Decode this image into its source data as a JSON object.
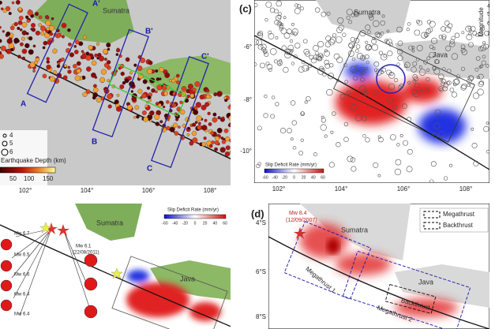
{
  "panel_a": {
    "place": "Sumatra",
    "profiles": [
      "A'",
      "B'",
      "C'",
      "A",
      "B",
      "C"
    ],
    "magnitude_legend": [
      "4",
      "5",
      "6"
    ],
    "colorbar_title": "Earthquake Depth (km)",
    "colorbar_ticks": [
      "50",
      "100",
      "150"
    ],
    "lon_ticks": [
      "102°",
      "104°",
      "106°",
      "108°"
    ]
  },
  "panel_c": {
    "label": "(c)",
    "places": [
      "Sumatra",
      "Java"
    ],
    "magnitude_title": "Magnitude",
    "magnitude_legend": [
      "4",
      "5",
      "6",
      "7"
    ],
    "colorbar_title": "Slip Deficit Rate (mm/yr)",
    "colorbar_ticks": [
      "-60",
      "-40",
      "-20",
      "0",
      "20",
      "40",
      "60"
    ],
    "lat_ticks": [
      "-6°",
      "-8°",
      "-10°"
    ],
    "lon_ticks": [
      "102°",
      "104°",
      "106°",
      "108°"
    ]
  },
  "panel_b": {
    "places": [
      "Sumatra",
      "Java"
    ],
    "colorbar_title": "Slip Deficit Rate (mm/yr)",
    "colorbar_ticks": [
      "-60",
      "-40",
      "-20",
      "0",
      "20",
      "40",
      "60"
    ],
    "events": [
      "Mw 6.7",
      "Mw 6.5",
      "Mw 6.6",
      "Mw 6.4",
      "Mw 6.4"
    ],
    "event_main": "Mw 6.1",
    "event_main_date": "(22/08/2011)"
  },
  "panel_d": {
    "label": "(d)",
    "event": "Mw 8.4",
    "event_date": "(12/09/2007)",
    "places": [
      "Sumatra",
      "Java"
    ],
    "legend": [
      "Megathrust",
      "Backthrust"
    ],
    "segments": [
      "Megathrust 1",
      "Megathrust 2",
      "Backthrust"
    ],
    "lat_ticks": [
      "4°S",
      "6°S",
      "8°S"
    ]
  }
}
